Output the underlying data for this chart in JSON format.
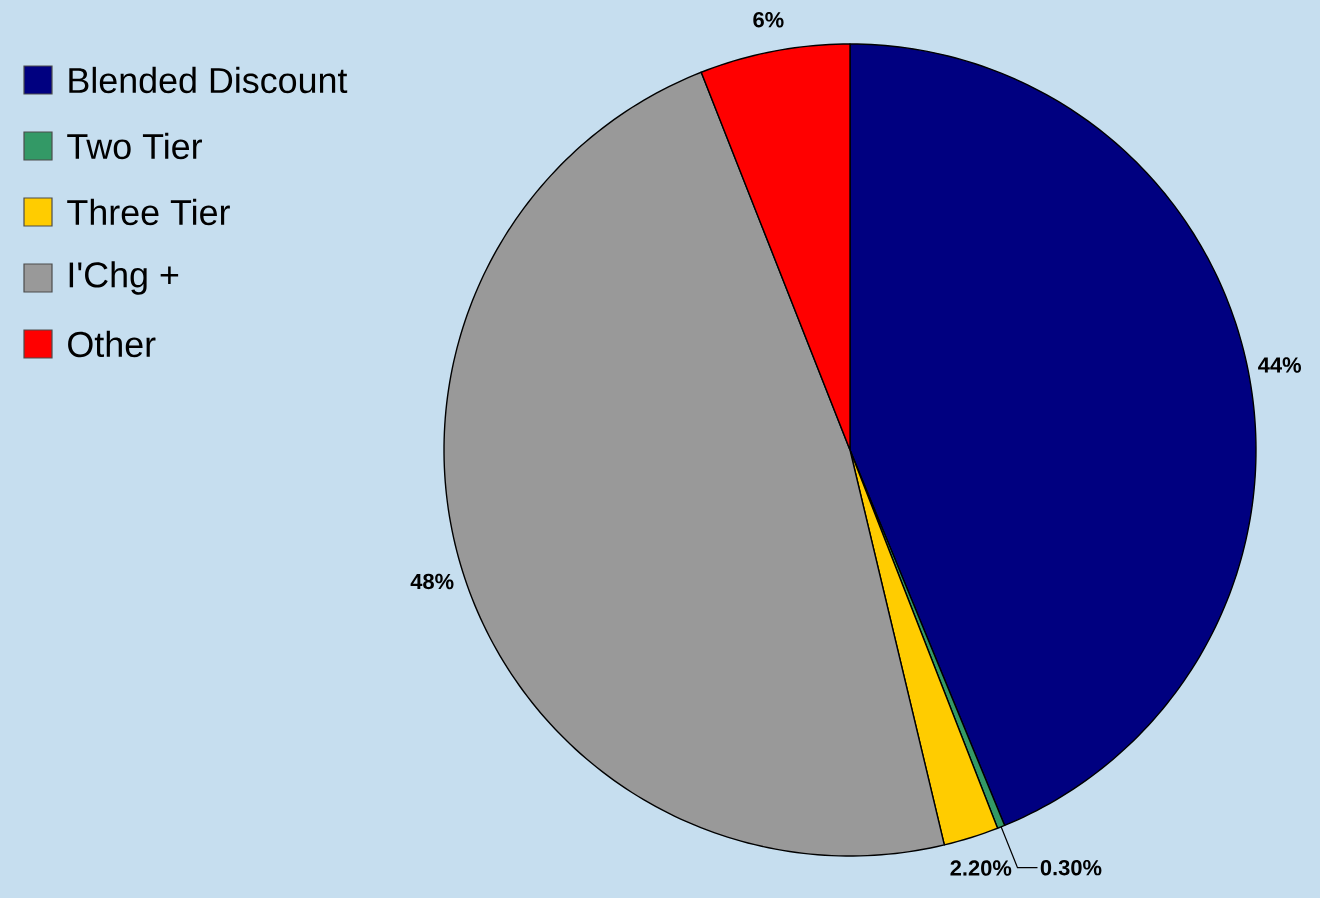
{
  "chart_data": {
    "type": "pie",
    "categories": [
      "Blended Discount",
      "Two Tier",
      "Three Tier",
      "I'Chg +",
      "Other"
    ],
    "values": [
      44,
      0.3,
      2.2,
      48,
      6
    ],
    "value_labels": [
      "44%",
      "0.30%",
      "2.20%",
      "48%",
      "6%"
    ],
    "colors": [
      "#000080",
      "#339966",
      "#ffcc00",
      "#999999",
      "#ff0000"
    ],
    "legend": "top left"
  }
}
